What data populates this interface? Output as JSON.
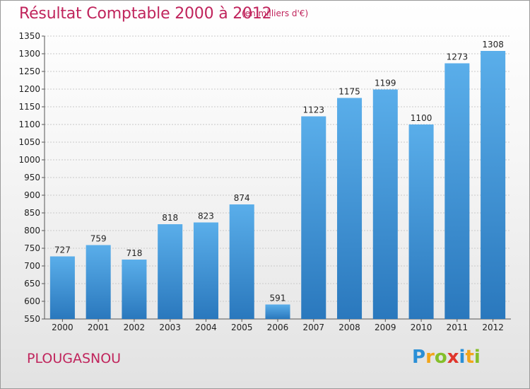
{
  "header": {
    "title": "Résultat Comptable 2000 à 2012",
    "subtitle": "(en milliers d'€)"
  },
  "footer": {
    "commune": "PLOUGASNOU",
    "logo_text": "Proxiti",
    "logo_letters": [
      {
        "ch": "P",
        "color": "#2a8fd6"
      },
      {
        "ch": "r",
        "color": "#f2a51a"
      },
      {
        "ch": "o",
        "color": "#84bf2a"
      },
      {
        "ch": "x",
        "color": "#e0362c"
      },
      {
        "ch": "i",
        "color": "#2a8fd6"
      },
      {
        "ch": "t",
        "color": "#f2a51a"
      },
      {
        "ch": "i",
        "color": "#84bf2a"
      }
    ]
  },
  "chart_data": {
    "type": "bar",
    "title": "Résultat Comptable 2000 à 2012",
    "subtitle": "(en milliers d'€)",
    "categories": [
      "2000",
      "2001",
      "2002",
      "2003",
      "2004",
      "2005",
      "2006",
      "2007",
      "2008",
      "2009",
      "2010",
      "2011",
      "2012"
    ],
    "values": [
      727,
      759,
      718,
      818,
      823,
      874,
      591,
      1123,
      1175,
      1199,
      1100,
      1273,
      1308
    ],
    "ylim": [
      550,
      1350
    ],
    "yticks": [
      550,
      600,
      650,
      700,
      750,
      800,
      850,
      900,
      950,
      1000,
      1050,
      1100,
      1150,
      1200,
      1250,
      1300,
      1350
    ],
    "grid": true,
    "bar_color_top": "#5aaeea",
    "bar_color_bottom": "#2a78bd",
    "xlabel": "",
    "ylabel": ""
  }
}
